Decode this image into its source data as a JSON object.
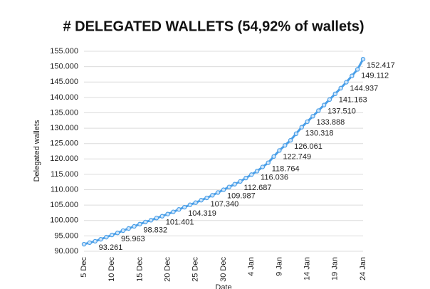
{
  "chart_data": {
    "type": "line",
    "title": "# DELEGATED WALLETS (54,92% of wallets)",
    "y_label": "Delegated wallets",
    "x_label": "Date",
    "categories": [
      "5 Dec",
      null,
      null,
      null,
      null,
      "10 Dec",
      null,
      null,
      null,
      null,
      "15 Dec",
      null,
      null,
      null,
      null,
      "20 Dec",
      null,
      null,
      null,
      null,
      "25 Dec",
      null,
      null,
      null,
      null,
      "30 Dec",
      null,
      null,
      null,
      null,
      "4 Jan",
      null,
      null,
      null,
      null,
      "9 Jan",
      null,
      null,
      null,
      null,
      "14 Jan",
      null,
      null,
      null,
      null,
      "19 Jan",
      null,
      null,
      null,
      null,
      "24 Jan"
    ],
    "values": [
      92300,
      92800,
      93261,
      93900,
      94600,
      95300,
      95963,
      96700,
      97400,
      98100,
      98832,
      99500,
      100100,
      100800,
      101401,
      102100,
      102800,
      103600,
      104319,
      105100,
      105800,
      106600,
      107340,
      108200,
      109100,
      109987,
      110900,
      111800,
      112687,
      113800,
      114900,
      116036,
      117400,
      118764,
      120800,
      122749,
      124400,
      126061,
      128200,
      130318,
      132100,
      133888,
      135700,
      137510,
      139300,
      141163,
      143000,
      144937,
      147000,
      149112,
      152417
    ],
    "value_labels": [
      null,
      null,
      "93.261",
      null,
      null,
      null,
      "95.963",
      null,
      null,
      null,
      "98.832",
      null,
      null,
      null,
      "101.401",
      null,
      null,
      null,
      "104.319",
      null,
      null,
      null,
      "107.340",
      null,
      null,
      "109.987",
      null,
      null,
      "112.687",
      null,
      null,
      "116.036",
      null,
      "118.764",
      null,
      "122.749",
      null,
      "126.061",
      null,
      "130.318",
      null,
      "133.888",
      null,
      "137.510",
      null,
      "141.163",
      null,
      "144.937",
      null,
      "149.112",
      "152.417"
    ],
    "color": "#4a9fe8",
    "ylim": [
      90000,
      155000
    ],
    "yticks": [
      {
        "value": 90000,
        "label": "90.000"
      },
      {
        "value": 95000,
        "label": "95.000"
      },
      {
        "value": 100000,
        "label": "100.000"
      },
      {
        "value": 105000,
        "label": "105.000"
      },
      {
        "value": 110000,
        "label": "110.000"
      },
      {
        "value": 115000,
        "label": "115.000"
      },
      {
        "value": 120000,
        "label": "120.000"
      },
      {
        "value": 125000,
        "label": "125.000"
      },
      {
        "value": 130000,
        "label": "130.000"
      },
      {
        "value": 135000,
        "label": "135.000"
      },
      {
        "value": 140000,
        "label": "140.000"
      },
      {
        "value": 145000,
        "label": "145.000"
      },
      {
        "value": 150000,
        "label": "150.000"
      },
      {
        "value": 155000,
        "label": "155.000"
      }
    ],
    "grid": true
  }
}
